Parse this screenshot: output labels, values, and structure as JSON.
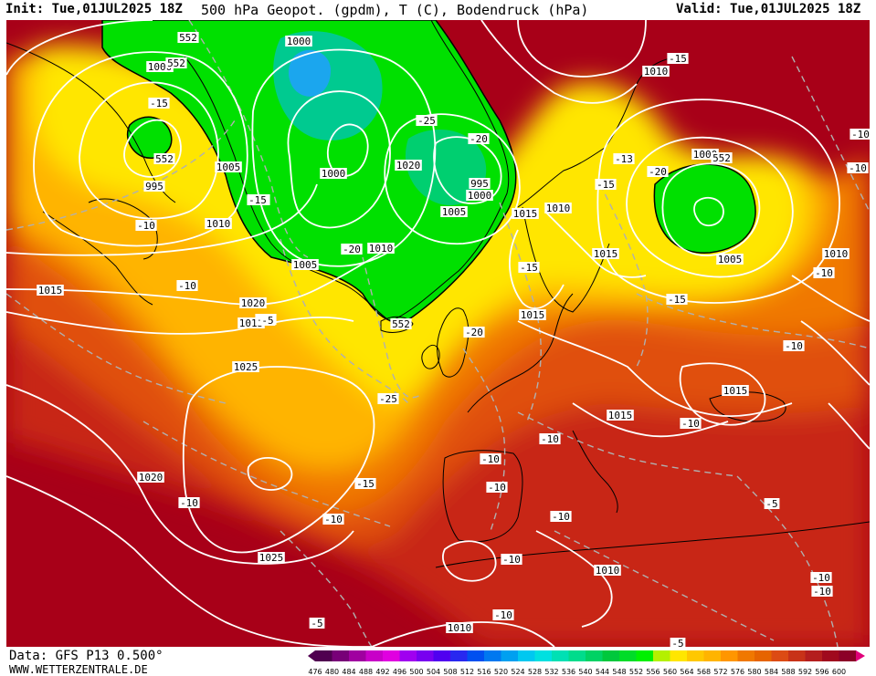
{
  "header": {
    "init": "Init: Tue,01JUL2025 18Z",
    "title": "500 hPa Geopot. (gpdm), T (C), Bodendruck (hPa)",
    "valid": "Valid: Tue,01JUL2025 18Z"
  },
  "footer": {
    "data_source": "Data: GFS P13 0.500°",
    "website": "WWW.WETTERZENTRALE.DE"
  },
  "colors": {
    "geopot_552_556": "#00e000",
    "geopot_low": "#00c8a0",
    "geopot_lowest": "#20a0ff",
    "yellow": "#ffe600",
    "orange_light": "#ffb400",
    "orange": "#f07800",
    "red_orange": "#e05010",
    "red": "#c82818",
    "dark_red": "#a80018",
    "isobar": "#ffffff",
    "isotherm": "#b0b0b0",
    "coast": "#000000"
  },
  "color_scale": {
    "values": [
      "476",
      "480",
      "484",
      "488",
      "492",
      "496",
      "500",
      "504",
      "508",
      "512",
      "516",
      "520",
      "524",
      "528",
      "532",
      "536",
      "540",
      "544",
      "548",
      "552",
      "556",
      "560",
      "564",
      "568",
      "572",
      "576",
      "580",
      "584",
      "588",
      "592",
      "596",
      "600"
    ],
    "colors": [
      "#500050",
      "#780078",
      "#a000a0",
      "#c800c8",
      "#e000e0",
      "#a000f0",
      "#7800f0",
      "#5000f0",
      "#2828f0",
      "#0050f0",
      "#0078f0",
      "#00a0f0",
      "#00c8f0",
      "#00e0e0",
      "#00e0b4",
      "#00dc8c",
      "#00d264",
      "#00c83c",
      "#00dc28",
      "#00f000",
      "#b4f000",
      "#ffe600",
      "#ffc800",
      "#ffb400",
      "#ff9600",
      "#f07800",
      "#e66400",
      "#dc4b14",
      "#c83218",
      "#b41e1e",
      "#a00a1e",
      "#8c0028"
    ]
  },
  "isobar_labels": [
    {
      "text": "1000"
    },
    {
      "text": "1000"
    },
    {
      "text": "995"
    },
    {
      "text": "1005"
    },
    {
      "text": "1010"
    },
    {
      "text": "1015"
    },
    {
      "text": "1020"
    },
    {
      "text": "1015"
    },
    {
      "text": "1025"
    },
    {
      "text": "1020"
    },
    {
      "text": "1025"
    },
    {
      "text": "1000"
    },
    {
      "text": "1010"
    },
    {
      "text": "1005"
    },
    {
      "text": "995"
    },
    {
      "text": "1000"
    },
    {
      "text": "1005"
    },
    {
      "text": "1015"
    },
    {
      "text": "1010"
    },
    {
      "text": "1015"
    },
    {
      "text": "1015"
    },
    {
      "text": "1010"
    },
    {
      "text": "1000"
    },
    {
      "text": "1005"
    },
    {
      "text": "1010"
    },
    {
      "text": "1015"
    },
    {
      "text": "1015"
    },
    {
      "text": "1010"
    },
    {
      "text": "1010"
    },
    {
      "text": "1020"
    }
  ],
  "temp_labels": [
    {
      "text": "-15"
    },
    {
      "text": "-10"
    },
    {
      "text": "-20"
    },
    {
      "text": "-10"
    },
    {
      "text": "-15"
    },
    {
      "text": "-25"
    },
    {
      "text": "-20"
    },
    {
      "text": "-20"
    },
    {
      "text": "-15"
    },
    {
      "text": "-20"
    },
    {
      "text": "-25"
    },
    {
      "text": "-15"
    },
    {
      "text": "-10"
    },
    {
      "text": "-10"
    },
    {
      "text": "-5"
    },
    {
      "text": "-10"
    },
    {
      "text": "-10"
    },
    {
      "text": "-10"
    },
    {
      "text": "-10"
    },
    {
      "text": "-10"
    },
    {
      "text": "-10"
    },
    {
      "text": "-10"
    },
    {
      "text": "-10"
    },
    {
      "text": "-15"
    },
    {
      "text": "-13"
    },
    {
      "text": "-15"
    },
    {
      "text": "-20"
    },
    {
      "text": "-15"
    },
    {
      "text": "-10"
    },
    {
      "text": "-10"
    },
    {
      "text": "-10"
    },
    {
      "text": "-10"
    },
    {
      "text": "-10"
    },
    {
      "text": "-5"
    },
    {
      "text": "-5"
    },
    {
      "text": "-5"
    },
    {
      "text": "-15"
    },
    {
      "text": "-20"
    }
  ],
  "geopot_labels": [
    {
      "text": "552"
    },
    {
      "text": "552"
    },
    {
      "text": "552"
    },
    {
      "text": "552"
    },
    {
      "text": "552"
    }
  ]
}
